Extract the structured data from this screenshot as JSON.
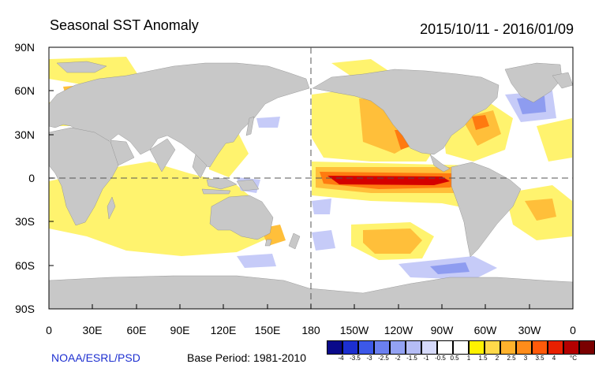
{
  "title": "Seasonal SST Anomaly",
  "date_range": "2015/10/11 - 2016/01/09",
  "lat_labels": [
    "90N",
    "60N",
    "30N",
    "0",
    "30S",
    "60S",
    "90S"
  ],
  "lon_labels": [
    "0",
    "30E",
    "60E",
    "90E",
    "120E",
    "150E",
    "180",
    "150W",
    "120W",
    "90W",
    "60W",
    "30W",
    "0"
  ],
  "credit": "NOAA/ESRL/PSD",
  "base_period": "Base Period: 1981-2010",
  "colorbar": {
    "ticks": [
      "-4",
      "-3.5",
      "-3",
      "-2.5",
      "-2",
      "-1.5",
      "-1",
      "-0.5",
      "0.5",
      "1",
      "1.5",
      "2",
      "2.5",
      "3",
      "3.5",
      "4"
    ],
    "unit": "°C",
    "colors": [
      "#0a0a8a",
      "#1c2fd0",
      "#3c58e8",
      "#6b80f0",
      "#93a2f3",
      "#b5bdf6",
      "#d6dafb",
      "#ffffff",
      "#ffffff",
      "#fff200",
      "#ffd94a",
      "#ffb22c",
      "#ff8c1a",
      "#ff5a0a",
      "#e82000",
      "#b40000",
      "#7a0000"
    ]
  },
  "colors": {
    "land": "#c8c8c8",
    "warm_weak": "#fff36e",
    "warm_mid": "#ffbf3a",
    "warm_strong": "#ff7a10",
    "warm_peak": "#d40000",
    "cool_weak": "#c6cbf8",
    "cool_mid": "#8e9cf0"
  }
}
